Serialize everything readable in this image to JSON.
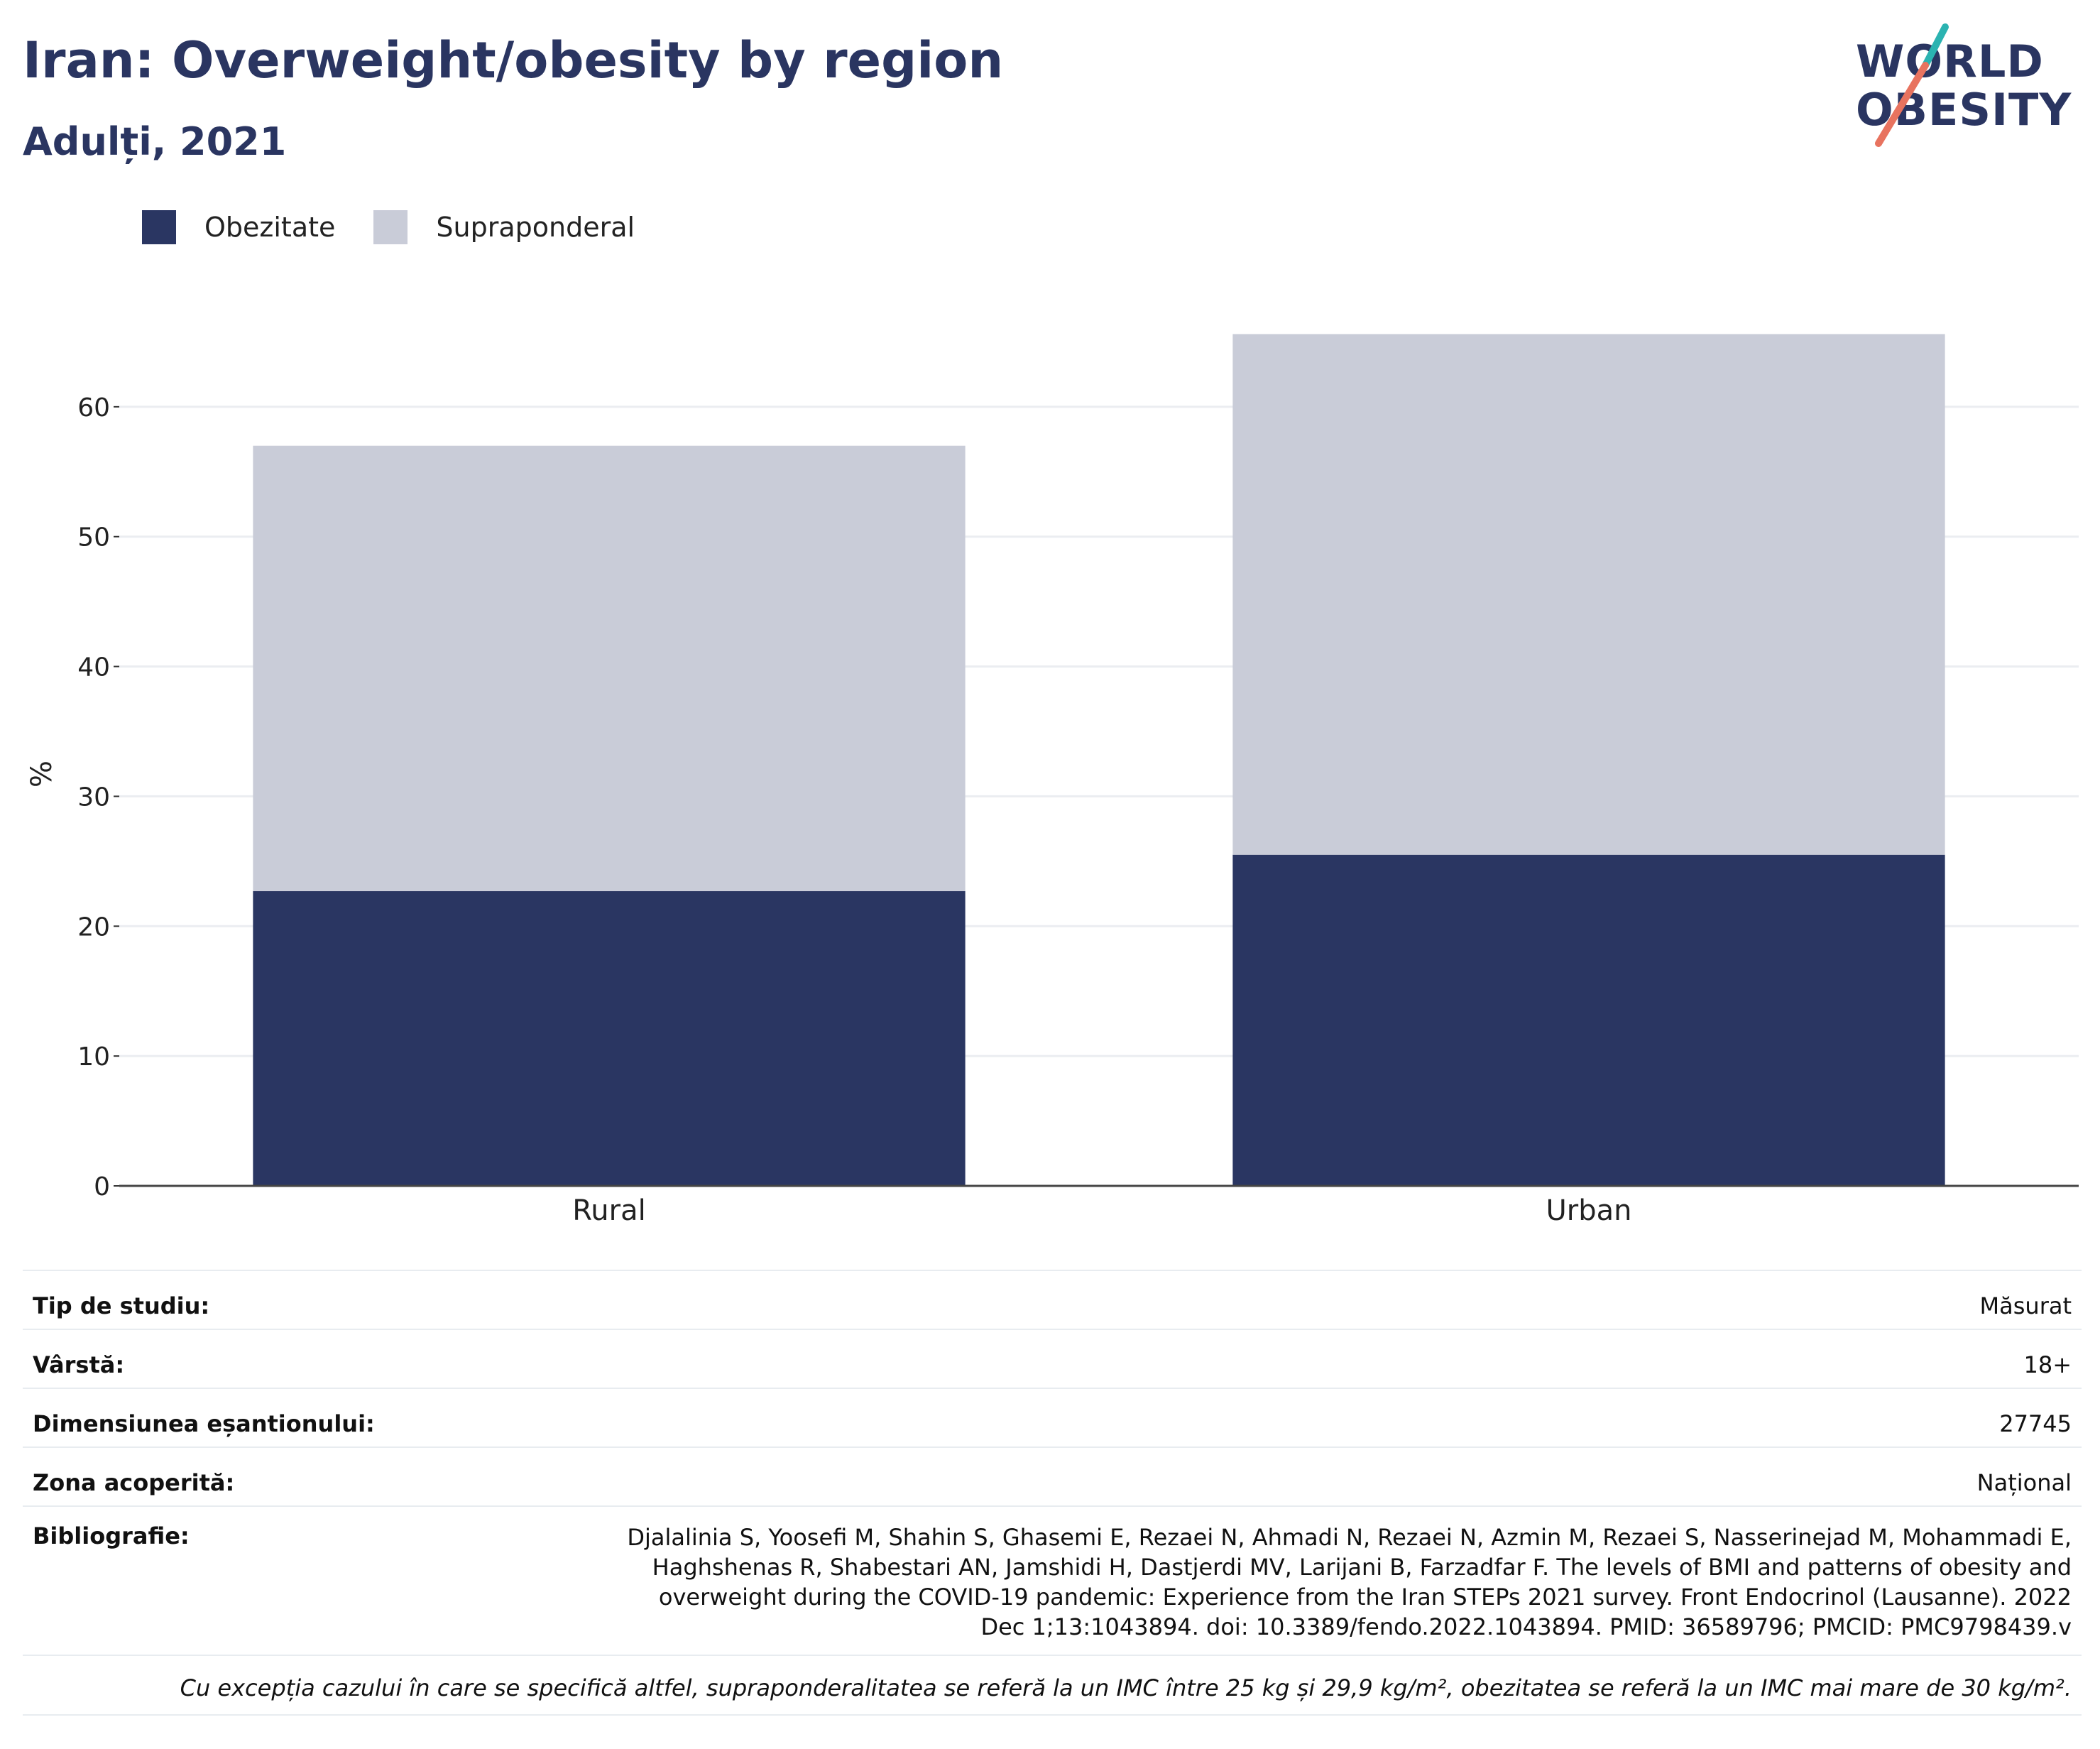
{
  "header": {
    "title": "Iran: Overweight/obesity by region",
    "subtitle": "Adulți, 2021",
    "logo_line1": "WORLD",
    "logo_line2": "OBESITY"
  },
  "colors": {
    "obesity": "#2a3662",
    "overweight": "#c9ccd8",
    "title": "#2a3561",
    "logo_teal": "#2bb3b1",
    "logo_coral": "#e8735f"
  },
  "chart_data": {
    "type": "bar",
    "stacked": true,
    "categories": [
      "Rural",
      "Urban"
    ],
    "series": [
      {
        "name": "Obezitate",
        "values": [
          22.7,
          25.5
        ]
      },
      {
        "name": "Supraponderal",
        "values": [
          34.3,
          40.1
        ]
      }
    ],
    "ylabel": "%",
    "ylim": [
      0,
      70
    ],
    "yticks": [
      0,
      10,
      20,
      30,
      40,
      50,
      60
    ],
    "grid": true,
    "legend_position": "top-left"
  },
  "info": {
    "study_type_label": "Tip de studiu:",
    "study_type_value": "Măsurat",
    "age_label": "Vârstă:",
    "age_value": "18+",
    "sample_label": "Dimensiunea eșantionului:",
    "sample_value": "27745",
    "area_label": "Zona acoperită:",
    "area_value": "Național",
    "biblio_label": "Bibliografie:",
    "biblio_value": "Djalalinia S, Yoosefi M, Shahin S, Ghasemi E, Rezaei N, Ahmadi N, Rezaei N, Azmin M, Rezaei S, Nasserinejad M, Mohammadi E, Haghshenas R, Shabestari AN, Jamshidi H, Dastjerdi MV, Larijani B, Farzadfar F. The levels of BMI and patterns of obesity and overweight during the COVID-19 pandemic: Experience from the Iran STEPs 2021 survey. Front Endocrinol (Lausanne). 2022 Dec 1;13:1043894. doi: 10.3389/fendo.2022.1043894. PMID: 36589796; PMCID: PMC9798439.v",
    "note": "Cu excepția cazului în care se specifică altfel, supraponderalitatea se referă la un IMC între 25 kg și 29,9 kg/m², obezitatea se referă la un IMC mai mare de 30 kg/m²."
  }
}
